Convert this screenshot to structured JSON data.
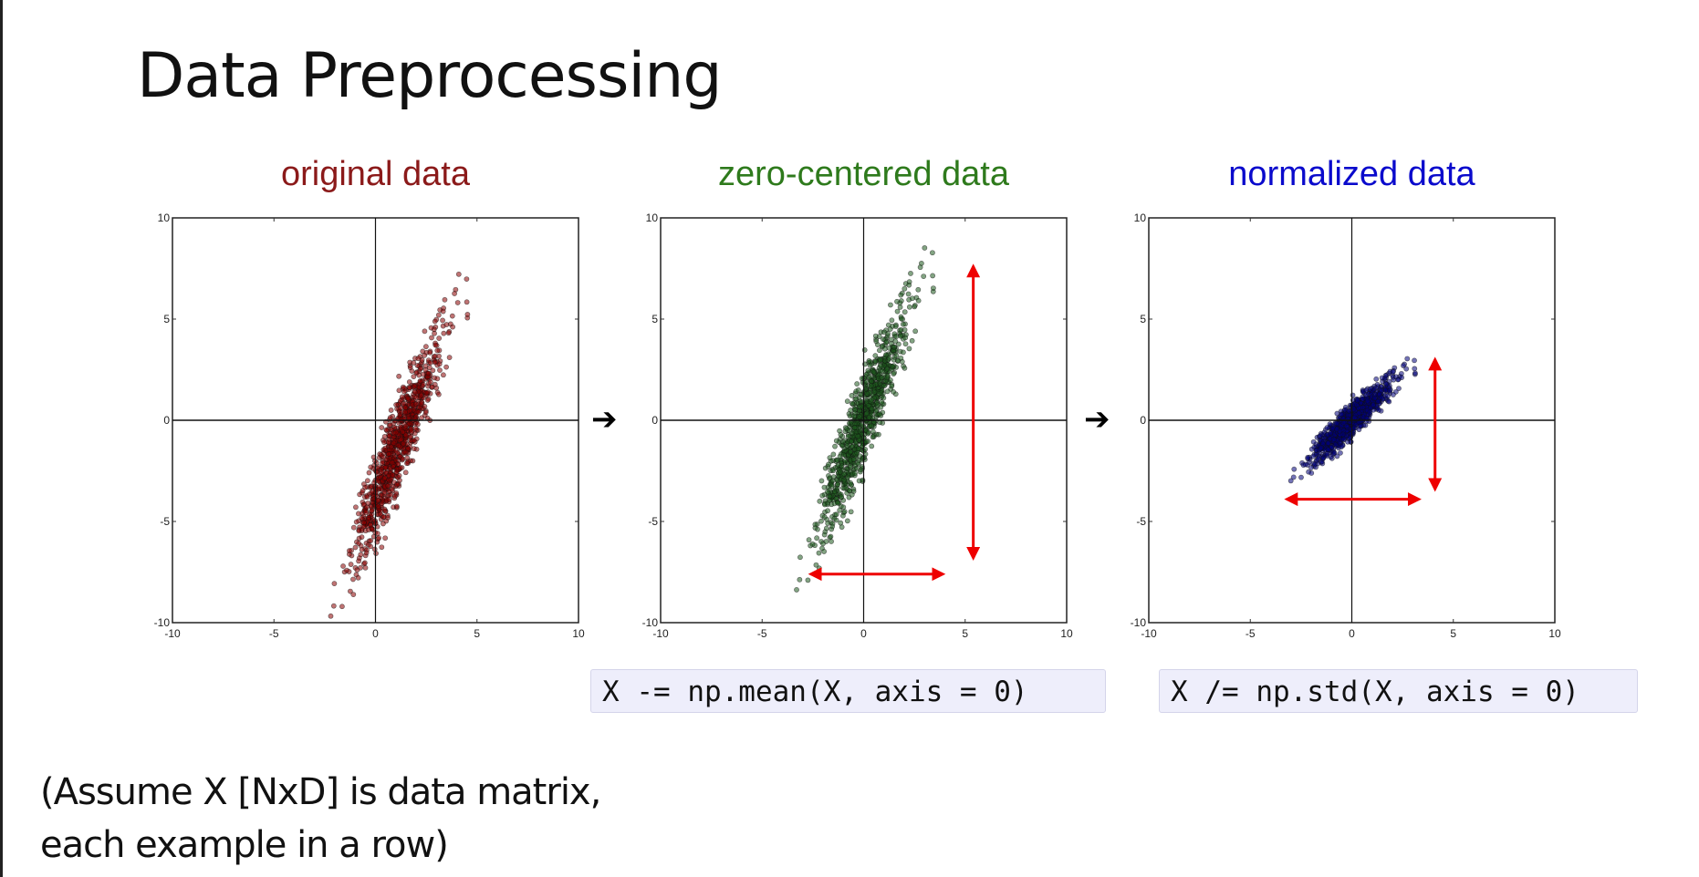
{
  "slide": {
    "title": "Data Preprocessing",
    "note_line1": "(Assume X [NxD] is data matrix,",
    "note_line2": "each example in a row)",
    "code_mean": "X -= np.mean(X, axis = 0)",
    "code_std": "X /= np.std(X, axis = 0)",
    "flow_arrow": "➔"
  },
  "chart_data": [
    {
      "type": "scatter",
      "title": "original data",
      "title_color": "#8b1a1a",
      "point_color": "#8b0000",
      "xlim": [
        -10,
        10
      ],
      "ylim": [
        -10,
        10
      ],
      "xticks": [
        "-10",
        "-5",
        "0",
        "5",
        "10"
      ],
      "yticks": [
        "10",
        "5",
        "0",
        "-5",
        "-10"
      ],
      "distribution": {
        "n": 900,
        "mean": [
          1.1,
          -1.3
        ],
        "std": [
          1.1,
          2.8
        ],
        "corr": 0.92,
        "seed": 7
      },
      "arrows": []
    },
    {
      "type": "scatter",
      "title": "zero-centered data",
      "title_color": "#2e7a1c",
      "point_color": "#1d5a1d",
      "xlim": [
        -10,
        10
      ],
      "ylim": [
        -10,
        10
      ],
      "xticks": [
        "-10",
        "-5",
        "0",
        "5",
        "10"
      ],
      "yticks": [
        "10",
        "5",
        "0",
        "-5",
        "-10"
      ],
      "distribution": {
        "n": 900,
        "mean": [
          0,
          0
        ],
        "std": [
          1.1,
          2.8
        ],
        "corr": 0.92,
        "seed": 7
      },
      "arrows": [
        {
          "from": [
            5.4,
            7.6
          ],
          "to": [
            5.4,
            -6.8
          ],
          "color": "#ee0000"
        },
        {
          "from": [
            -2.6,
            -7.6
          ],
          "to": [
            3.9,
            -7.6
          ],
          "color": "#ee0000"
        }
      ]
    },
    {
      "type": "scatter",
      "title": "normalized data",
      "title_color": "#0a0acc",
      "point_color": "#00007a",
      "xlim": [
        -10,
        10
      ],
      "ylim": [
        -10,
        10
      ],
      "xticks": [
        "-10",
        "-5",
        "0",
        "5",
        "10"
      ],
      "yticks": [
        "10",
        "5",
        "0",
        "-5",
        "-10"
      ],
      "distribution": {
        "n": 900,
        "mean": [
          0,
          0
        ],
        "std": [
          1.0,
          1.0
        ],
        "corr": 0.92,
        "seed": 7
      },
      "arrows": [
        {
          "from": [
            4.1,
            3.0
          ],
          "to": [
            4.1,
            -3.4
          ],
          "color": "#ee0000"
        },
        {
          "from": [
            -3.2,
            -3.9
          ],
          "to": [
            3.3,
            -3.9
          ],
          "color": "#ee0000"
        }
      ]
    }
  ]
}
